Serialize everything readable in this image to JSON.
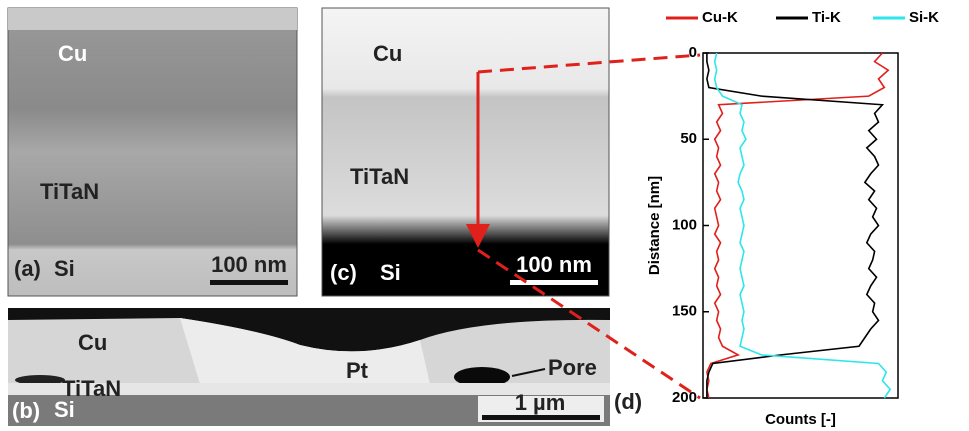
{
  "panels": {
    "a": {
      "tag": "(a)",
      "top": "Cu",
      "middle": "TiTaN",
      "bottom": "Si",
      "scale": "100 nm"
    },
    "b": {
      "tag": "(b)",
      "cu": "Cu",
      "pt": "Pt",
      "pore": "Pore",
      "titan": "TiTaN",
      "si": "Si",
      "scale": "1 µm"
    },
    "c": {
      "tag": "(c)",
      "top": "Cu",
      "middle": "TiTaN",
      "bottom": "Si",
      "scale": "100 nm"
    },
    "d": {
      "tag": "(d)"
    }
  },
  "chart_data": {
    "type": "line",
    "y_label": "Distance [nm]",
    "x_label": "Counts [-]",
    "ylim": [
      200,
      0
    ],
    "yticks": [
      0,
      50,
      100,
      150,
      200
    ],
    "xlim": [
      0,
      100
    ],
    "y": [
      0,
      5,
      10,
      15,
      20,
      25,
      30,
      35,
      40,
      45,
      50,
      55,
      60,
      65,
      70,
      75,
      80,
      85,
      90,
      95,
      100,
      105,
      110,
      115,
      120,
      125,
      130,
      135,
      140,
      145,
      150,
      155,
      160,
      165,
      170,
      175,
      180,
      185,
      190,
      195,
      200
    ],
    "series": [
      {
        "name": "Cu-K",
        "color": "#e0201b",
        "values": [
          92,
          88,
          95,
          90,
          93,
          85,
          8,
          10,
          7,
          9,
          6,
          8,
          7,
          9,
          6,
          8,
          7,
          9,
          6,
          7,
          8,
          6,
          9,
          7,
          8,
          6,
          8,
          7,
          9,
          6,
          8,
          7,
          9,
          8,
          10,
          18,
          4,
          2,
          3,
          2,
          3
        ]
      },
      {
        "name": "Ti-K",
        "color": "#000000",
        "values": [
          2,
          2,
          3,
          2,
          3,
          30,
          92,
          88,
          90,
          85,
          89,
          84,
          88,
          90,
          86,
          83,
          88,
          85,
          89,
          87,
          90,
          86,
          84,
          88,
          87,
          85,
          89,
          86,
          84,
          88,
          87,
          90,
          86,
          83,
          80,
          40,
          5,
          3,
          2,
          2,
          2
        ]
      },
      {
        "name": "Si-K",
        "color": "#2ee6ea",
        "values": [
          7,
          6,
          7,
          6,
          7,
          10,
          20,
          19,
          21,
          20,
          22,
          19,
          20,
          21,
          19,
          18,
          20,
          21,
          19,
          20,
          21,
          20,
          19,
          21,
          20,
          19,
          20,
          21,
          19,
          20,
          21,
          20,
          21,
          20,
          19,
          30,
          90,
          94,
          92,
          96,
          93
        ]
      }
    ]
  }
}
